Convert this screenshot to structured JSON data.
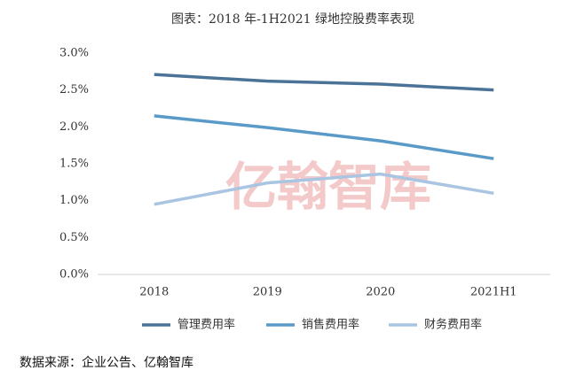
{
  "chart_data": {
    "type": "line",
    "title": "图表：2018 年-1H2021 绿地控股费率表现",
    "categories": [
      "2018",
      "2019",
      "2020",
      "2021H1"
    ],
    "series": [
      {
        "name": "管理费用率",
        "color": "#4b7398",
        "values": [
          2.71,
          2.62,
          2.58,
          2.5
        ]
      },
      {
        "name": "销售费用率",
        "color": "#5a9ac8",
        "values": [
          2.15,
          1.99,
          1.81,
          1.57
        ]
      },
      {
        "name": "财务费用率",
        "color": "#a9c5e2",
        "values": [
          0.95,
          1.24,
          1.36,
          1.1
        ]
      }
    ],
    "ylim": [
      0,
      3
    ],
    "yticks": [
      {
        "value": 0,
        "label": "0.0%"
      },
      {
        "value": 0.5,
        "label": "0.5%"
      },
      {
        "value": 1,
        "label": "1.0%"
      },
      {
        "value": 1.5,
        "label": "1.5%"
      },
      {
        "value": 2,
        "label": "2.0%"
      },
      {
        "value": 2.5,
        "label": "2.5%"
      },
      {
        "value": 3,
        "label": "3.0%"
      }
    ],
    "legend": "bottom",
    "watermark": "亿翰智库",
    "source": "数据来源：企业公告、亿翰智库"
  }
}
